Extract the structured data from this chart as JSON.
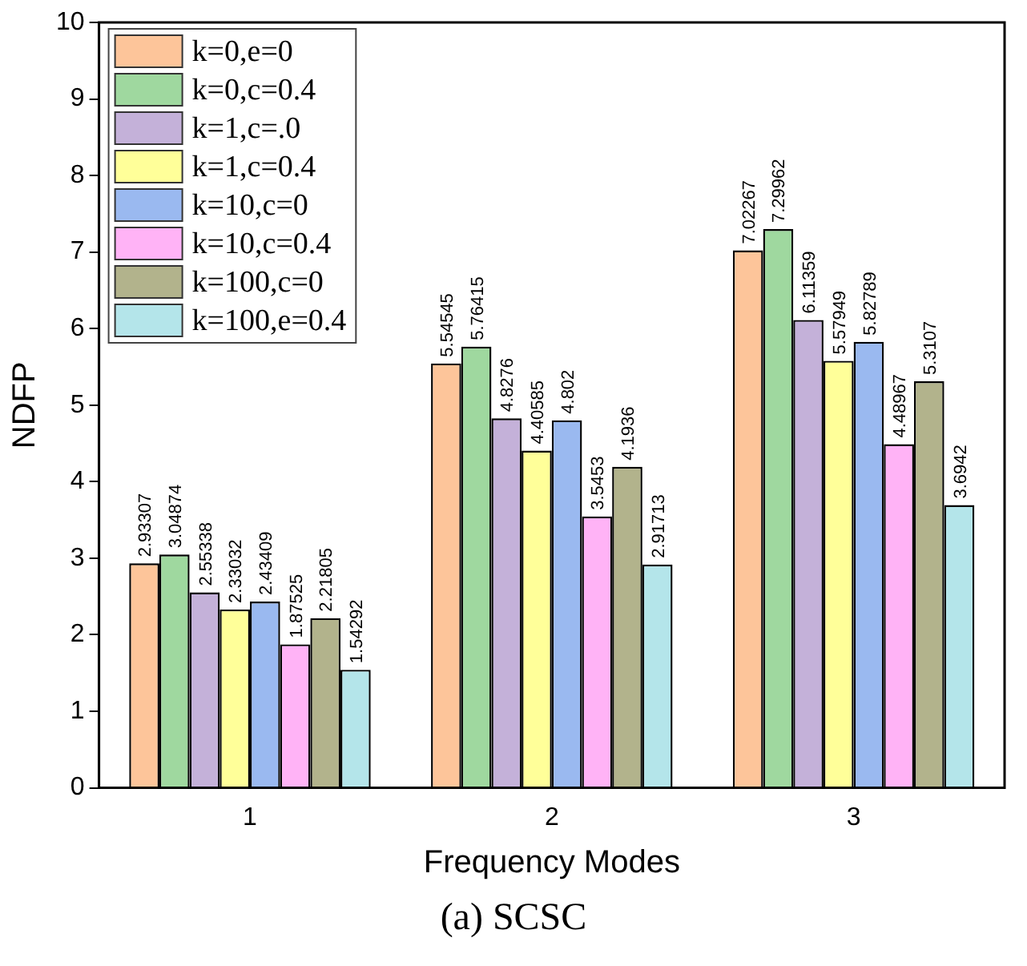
{
  "chart_data": {
    "type": "bar",
    "xlabel": "Frequency Modes",
    "ylabel": "NDFP",
    "categories": [
      "1",
      "2",
      "3"
    ],
    "series": [
      {
        "name": "k=0,e=0",
        "color": "#fdc59a",
        "values": [
          2.93307,
          5.54545,
          7.02267
        ]
      },
      {
        "name": "k=0,c=0.4",
        "color": "#9fd89f",
        "values": [
          3.04874,
          5.76415,
          7.29962
        ]
      },
      {
        "name": "k=1,c=.0",
        "color": "#c4b1d9",
        "values": [
          2.55338,
          4.8276,
          6.11359
        ]
      },
      {
        "name": "k=1,c=0.4",
        "color": "#ffff99",
        "values": [
          2.33032,
          4.40585,
          5.57949
        ]
      },
      {
        "name": "k=10,c=0",
        "color": "#9ab9f0",
        "values": [
          2.43409,
          4.802,
          5.82789
        ]
      },
      {
        "name": "k=10,c=0.4",
        "color": "#ffb3f6",
        "values": [
          1.87525,
          3.5453,
          4.48967
        ]
      },
      {
        "name": "k=100,c=0",
        "color": "#b2b38c",
        "values": [
          2.21805,
          4.1936,
          5.3107
        ]
      },
      {
        "name": "k=100,e=0.4",
        "color": "#b4e5ea",
        "values": [
          1.54292,
          2.91713,
          3.6942
        ]
      }
    ],
    "ylim": [
      0,
      10
    ],
    "yticks": [
      0,
      1,
      2,
      3,
      4,
      5,
      6,
      7,
      8,
      9,
      10
    ],
    "grid": false,
    "legend": "top left",
    "data_labels": true,
    "annotations": [
      "(a)  SCSC"
    ]
  }
}
